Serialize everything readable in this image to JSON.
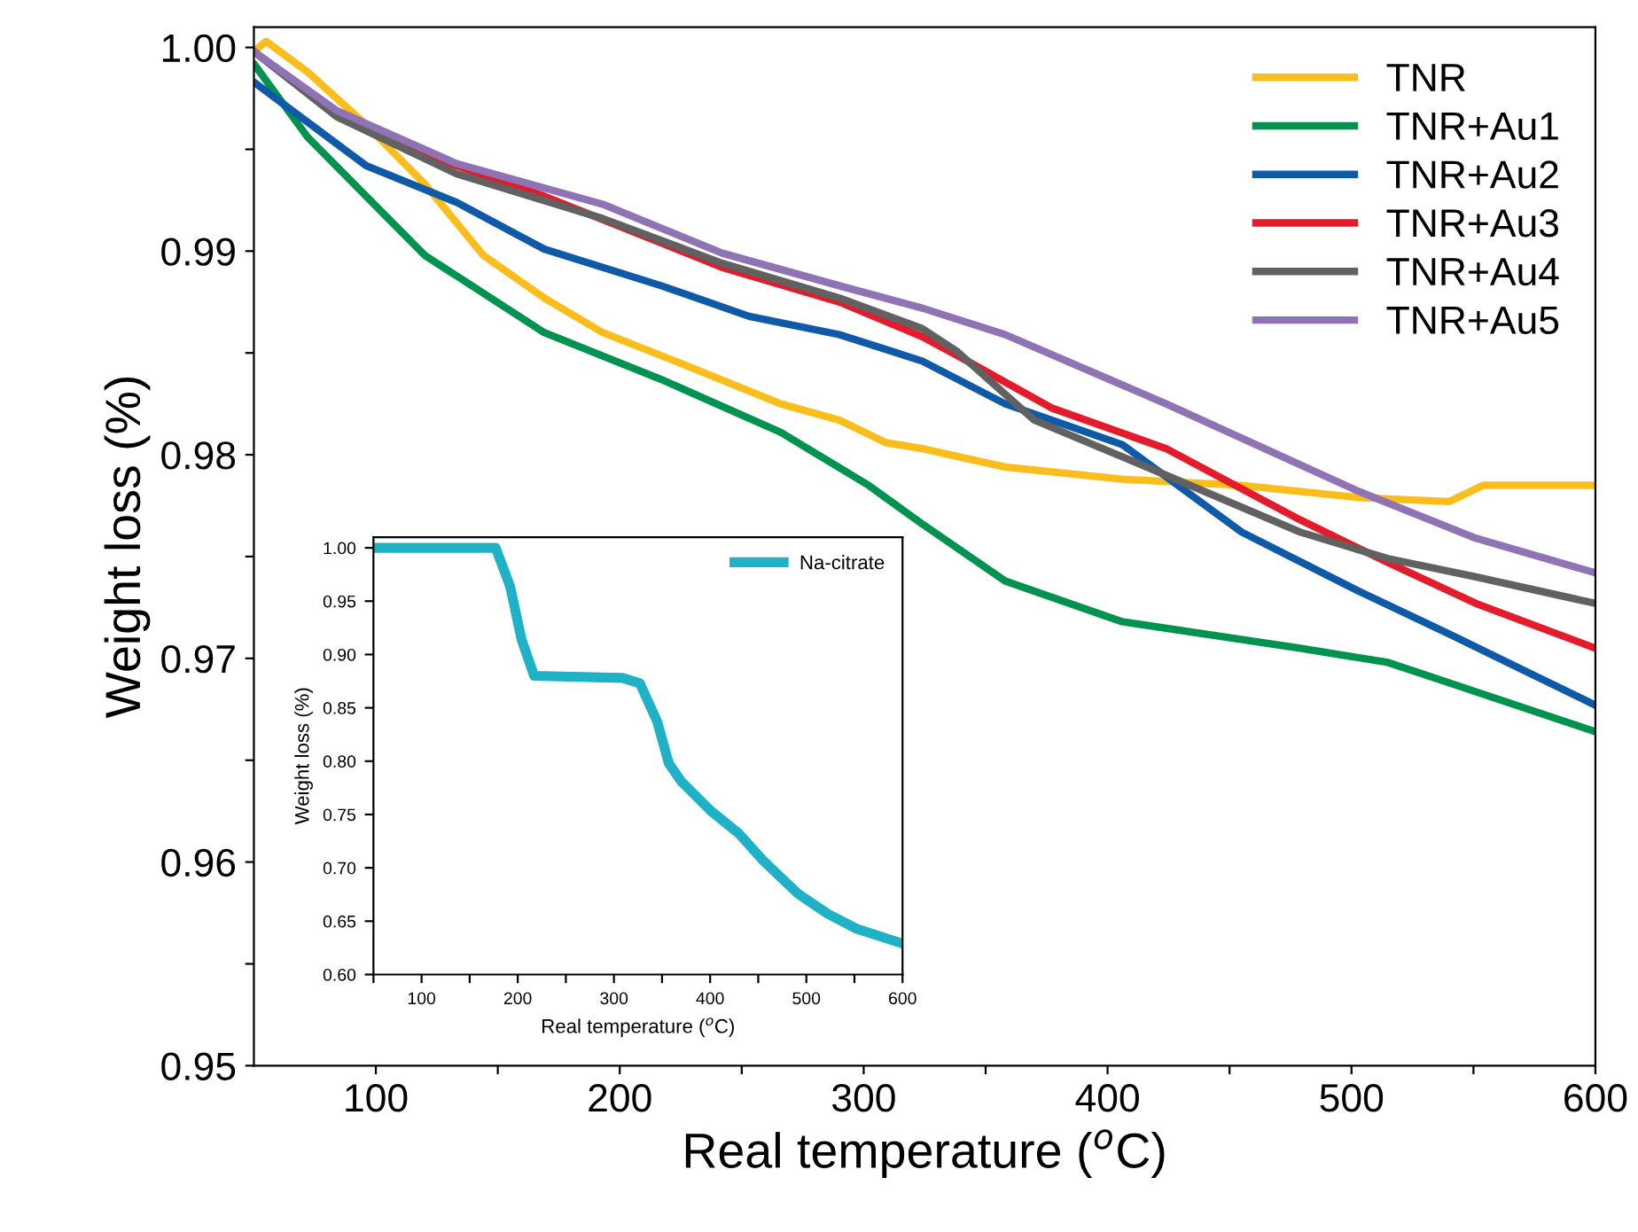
{
  "chart_data": [
    {
      "type": "line",
      "xlabel": "Real temperature ($^{o}$C)",
      "ylabel": "Weight loss (%)",
      "xlim": [
        50,
        600
      ],
      "ylim": [
        0.95,
        1.001
      ],
      "xticks": [
        100,
        {
          "value": 150,
          "label": null
        },
        200,
        {
          "value": 250,
          "label": null
        },
        300,
        {
          "value": 350,
          "label": null
        },
        400,
        {
          "value": 450,
          "label": null
        },
        500,
        {
          "value": 550,
          "label": null
        },
        600
      ],
      "yticks": [
        {
          "value": 0.95,
          "label": "0.95"
        },
        {
          "value": 0.955,
          "label": null
        },
        {
          "value": 0.96,
          "label": "0.96"
        },
        {
          "value": 0.965,
          "label": null
        },
        {
          "value": 0.97,
          "label": "0.97"
        },
        {
          "value": 0.975,
          "label": null
        },
        {
          "value": 0.98,
          "label": "0.98"
        },
        {
          "value": 0.985,
          "label": null
        },
        {
          "value": 0.99,
          "label": "0.99"
        },
        {
          "value": 0.995,
          "label": null
        },
        {
          "value": 1.0,
          "label": "1.00"
        }
      ],
      "legend": "top right",
      "grid": false,
      "line_style": "solid",
      "marker": "none",
      "series": [
        {
          "name": "TNR",
          "color": "#f9bd1c",
          "x": [
            50,
            55,
            72,
            96,
            120,
            144,
            169,
            193,
            229,
            266,
            290,
            309,
            324,
            358,
            406,
            455,
            503,
            540,
            554,
            600
          ],
          "values": [
            0.9998,
            1.0003,
            0.9988,
            0.9962,
            0.9933,
            0.9898,
            0.9877,
            0.986,
            0.9843,
            0.9825,
            0.9817,
            0.9806,
            0.9803,
            0.9794,
            0.9788,
            0.9785,
            0.9779,
            0.9777,
            0.9785,
            0.9785
          ]
        },
        {
          "name": "TNR+Au1",
          "color": "#00934f",
          "x": [
            50,
            72,
            120,
            169,
            217,
            266,
            302,
            324,
            358,
            406,
            479,
            515,
            540,
            600
          ],
          "values": [
            0.9992,
            0.9956,
            0.9898,
            0.986,
            0.9837,
            0.9811,
            0.9785,
            0.9766,
            0.9738,
            0.9718,
            0.9705,
            0.9698,
            0.9688,
            0.9664
          ]
        },
        {
          "name": "TNR+Au2",
          "color": "#0f5aa8",
          "x": [
            50,
            96,
            133,
            169,
            217,
            253,
            290,
            324,
            358,
            406,
            455,
            503,
            540,
            600
          ],
          "values": [
            0.9983,
            0.9942,
            0.9924,
            0.9901,
            0.9883,
            0.9868,
            0.9859,
            0.9846,
            0.9825,
            0.9805,
            0.9762,
            0.9733,
            0.9712,
            0.9677
          ]
        },
        {
          "name": "TNR+Au3",
          "color": "#e31b2a",
          "x": [
            50,
            84,
            133,
            169,
            242,
            290,
            324,
            338,
            377,
            424,
            479,
            515,
            551,
            600
          ],
          "values": [
            0.9998,
            0.9967,
            0.9942,
            0.9927,
            0.9892,
            0.9875,
            0.9858,
            0.9849,
            0.9823,
            0.9803,
            0.9768,
            0.9747,
            0.9727,
            0.9705
          ]
        },
        {
          "name": "TNR+Au4",
          "color": "#616161",
          "x": [
            50,
            84,
            133,
            193,
            242,
            290,
            324,
            338,
            370,
            424,
            479,
            515,
            551,
            600
          ],
          "values": [
            0.9998,
            0.9966,
            0.9938,
            0.9916,
            0.9894,
            0.9877,
            0.9862,
            0.9851,
            0.9817,
            0.979,
            0.9762,
            0.9749,
            0.974,
            0.9727
          ]
        },
        {
          "name": "TNR+Au5",
          "color": "#8f73b4",
          "x": [
            50,
            84,
            133,
            193,
            242,
            290,
            324,
            358,
            424,
            503,
            551,
            600
          ],
          "values": [
            0.9998,
            0.9969,
            0.9943,
            0.9923,
            0.9899,
            0.9883,
            0.9872,
            0.9859,
            0.9825,
            0.9782,
            0.9759,
            0.9742
          ]
        }
      ]
    },
    {
      "type": "line",
      "xlabel": "Real temperature ($^{o}$C)",
      "ylabel": "Weight loss (%)",
      "xlim": [
        50,
        600
      ],
      "ylim": [
        0.6,
        1.01
      ],
      "xticks": [
        {
          "value": 50,
          "label": null
        },
        100,
        {
          "value": 150,
          "label": null
        },
        200,
        {
          "value": 250,
          "label": null
        },
        300,
        {
          "value": 350,
          "label": null
        },
        400,
        {
          "value": 450,
          "label": null
        },
        500,
        {
          "value": 550,
          "label": null
        },
        600
      ],
      "yticks": [
        {
          "value": 0.6,
          "label": "0.60"
        },
        {
          "value": 0.65,
          "label": "0.65"
        },
        {
          "value": 0.7,
          "label": "0.70"
        },
        {
          "value": 0.75,
          "label": "0.75"
        },
        {
          "value": 0.8,
          "label": "0.80"
        },
        {
          "value": 0.85,
          "label": "0.85"
        },
        {
          "value": 0.9,
          "label": "0.90"
        },
        {
          "value": 0.95,
          "label": "0.95"
        },
        {
          "value": 1.0,
          "label": "1.00"
        }
      ],
      "legend": "top right",
      "grid": false,
      "line_style": "solid",
      "marker": "none",
      "series": [
        {
          "name": "Na-citrate",
          "color": "#1fb1c6",
          "x": [
            50,
            177,
            192,
            204,
            217,
            309,
            327,
            345,
            357,
            370,
            400,
            430,
            455,
            491,
            522,
            552,
            600
          ],
          "values": [
            1.0,
            1.0,
            0.964,
            0.914,
            0.88,
            0.878,
            0.873,
            0.837,
            0.798,
            0.781,
            0.754,
            0.732,
            0.707,
            0.676,
            0.657,
            0.643,
            0.629
          ]
        }
      ]
    }
  ]
}
